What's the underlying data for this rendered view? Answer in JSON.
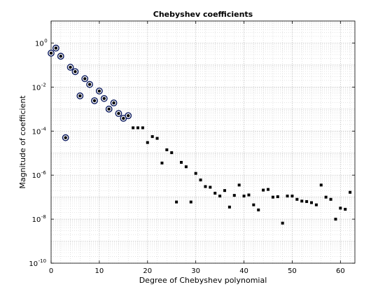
{
  "chart_data": {
    "type": "scatter",
    "title": "Chebyshev coefficients",
    "xlabel": "Degree of Chebyshev polynomial",
    "ylabel": "Magnitude of coefficient",
    "xlim": [
      0,
      63
    ],
    "ylim_log10": [
      -10,
      1
    ],
    "y_scale": "log",
    "grid": true,
    "minor_grid": true,
    "x_ticks": [
      0,
      10,
      20,
      30,
      40,
      50,
      60
    ],
    "y_ticks": [
      {
        "base": "10",
        "exp": "0",
        "log": 0
      },
      {
        "base": "10",
        "exp": "-2",
        "log": -2
      },
      {
        "base": "10",
        "exp": "-4",
        "log": -4
      },
      {
        "base": "10",
        "exp": "-6",
        "log": -6
      },
      {
        "base": "10",
        "exp": "-8",
        "log": -8
      },
      {
        "base": "10",
        "exp": "-10",
        "log": -10
      }
    ],
    "series": [
      {
        "marker": "circle",
        "color": "#0b1a5e",
        "points": [
          [
            0,
            -0.46
          ],
          [
            1,
            -0.23
          ],
          [
            2,
            -0.6
          ],
          [
            3,
            -4.3
          ],
          [
            4,
            -1.1
          ],
          [
            5,
            -1.3
          ],
          [
            6,
            -2.4
          ],
          [
            7,
            -1.62
          ],
          [
            8,
            -1.88
          ],
          [
            9,
            -2.62
          ],
          [
            10,
            -2.18
          ],
          [
            11,
            -2.52
          ],
          [
            12,
            -3.0
          ],
          [
            13,
            -2.72
          ],
          [
            14,
            -3.2
          ],
          [
            15,
            -3.42
          ],
          [
            16,
            -3.3
          ]
        ]
      },
      {
        "marker": "square",
        "color": "#000000",
        "points": [
          [
            17,
            -3.85
          ],
          [
            18,
            -3.85
          ],
          [
            19,
            -3.85
          ],
          [
            20,
            -4.52
          ],
          [
            21,
            -4.25
          ],
          [
            22,
            -4.33
          ],
          [
            23,
            -5.45
          ],
          [
            24,
            -4.85
          ],
          [
            25,
            -4.98
          ],
          [
            26,
            -7.22
          ],
          [
            27,
            -5.42
          ],
          [
            28,
            -5.62
          ],
          [
            29,
            -7.22
          ],
          [
            30,
            -5.92
          ],
          [
            31,
            -6.22
          ],
          [
            32,
            -6.52
          ],
          [
            33,
            -6.55
          ],
          [
            34,
            -6.82
          ],
          [
            35,
            -6.95
          ],
          [
            36,
            -6.7
          ],
          [
            37,
            -7.45
          ],
          [
            38,
            -6.92
          ],
          [
            39,
            -6.45
          ],
          [
            40,
            -6.95
          ],
          [
            41,
            -6.9
          ],
          [
            42,
            -7.35
          ],
          [
            43,
            -7.58
          ],
          [
            44,
            -6.68
          ],
          [
            45,
            -6.65
          ],
          [
            46,
            -7.0
          ],
          [
            47,
            -6.98
          ],
          [
            48,
            -8.18
          ],
          [
            49,
            -6.95
          ],
          [
            50,
            -6.95
          ],
          [
            51,
            -7.1
          ],
          [
            52,
            -7.18
          ],
          [
            53,
            -7.2
          ],
          [
            54,
            -7.25
          ],
          [
            55,
            -7.35
          ],
          [
            56,
            -6.45
          ],
          [
            57,
            -7.0
          ],
          [
            58,
            -7.1
          ],
          [
            59,
            -8.0
          ],
          [
            60,
            -7.5
          ],
          [
            61,
            -7.55
          ],
          [
            62,
            -6.78
          ]
        ]
      }
    ]
  }
}
